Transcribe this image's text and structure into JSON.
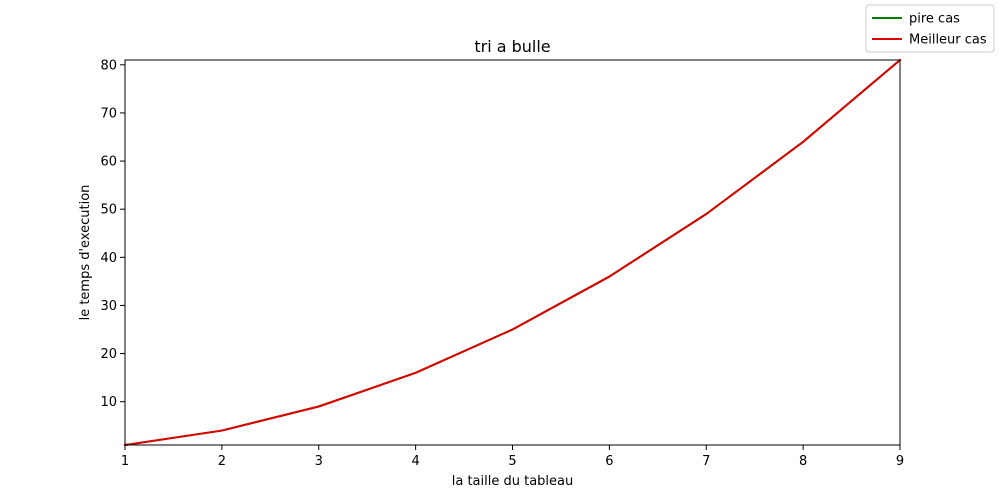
{
  "chart_data": {
    "type": "line",
    "title": "tri a bulle",
    "xlabel": "la taille du tableau",
    "ylabel": "le temps d'execution",
    "x": [
      1,
      2,
      3,
      4,
      5,
      6,
      7,
      8,
      9
    ],
    "xlim": [
      1,
      9
    ],
    "ylim": [
      1,
      81
    ],
    "xticks": [
      1,
      2,
      3,
      4,
      5,
      6,
      7,
      8,
      9
    ],
    "yticks": [
      10,
      20,
      30,
      40,
      50,
      60,
      70,
      80
    ],
    "grid": false,
    "legend_position": "top-right (outside plot, figure corner)",
    "series": [
      {
        "name": " pire cas",
        "color": "#008000",
        "values": [
          1,
          4,
          9,
          16,
          25,
          36,
          49,
          64,
          81
        ]
      },
      {
        "name": "Meilleur cas",
        "color": "#dd0000",
        "values": [
          1,
          4,
          9,
          16,
          25,
          36,
          49,
          64,
          81
        ]
      }
    ]
  }
}
